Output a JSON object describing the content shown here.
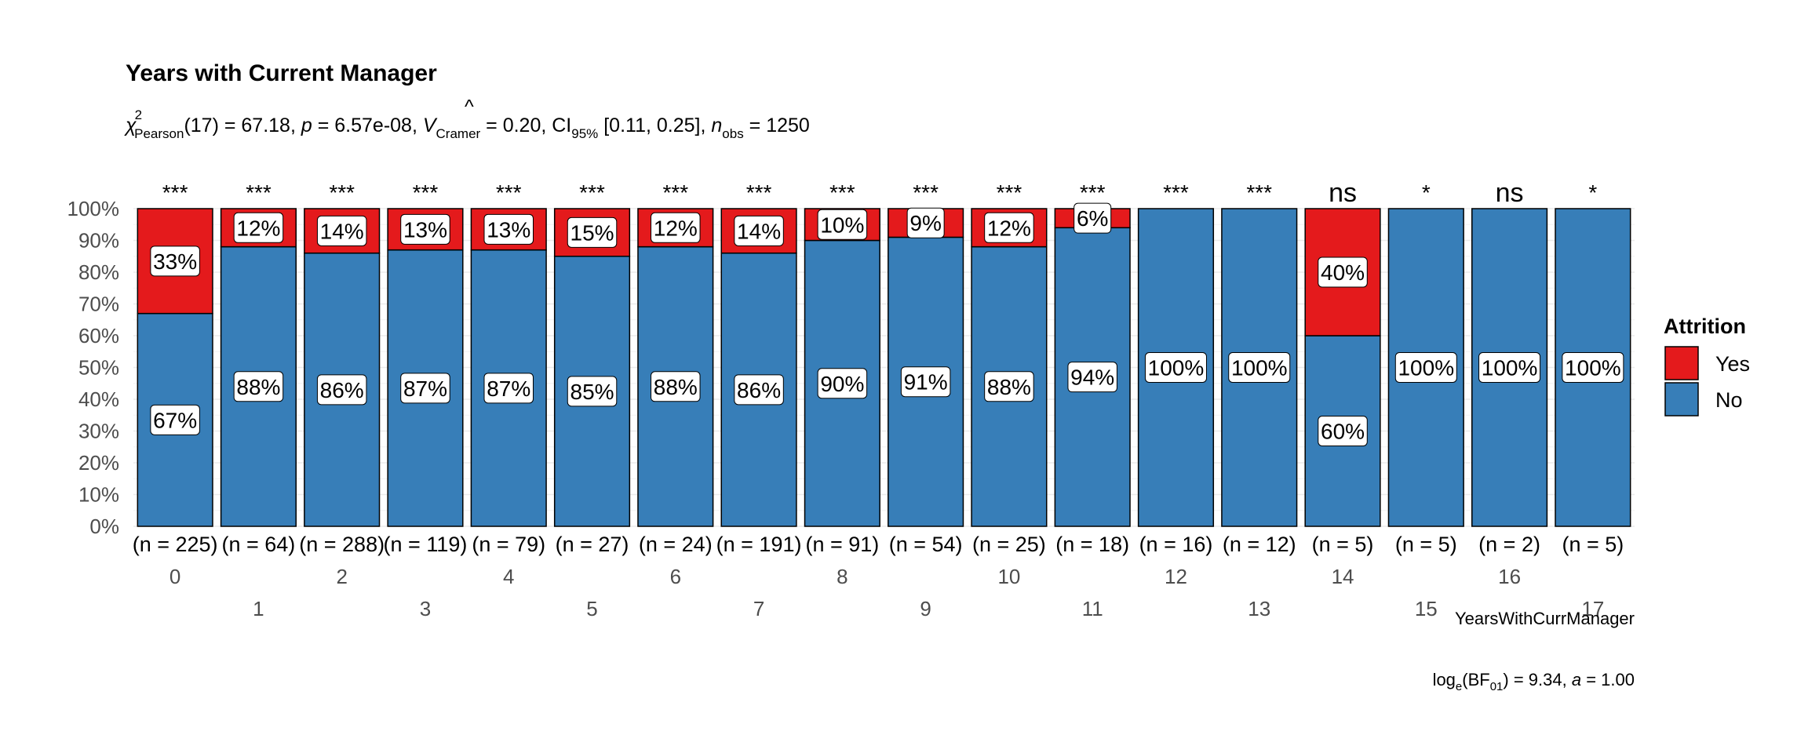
{
  "chart_data": {
    "type": "bar",
    "stacked": "percent",
    "title": "Years with Current Manager",
    "subtitle": {
      "stat_symbol": "χ",
      "stat_sup": "2",
      "stat_sub": "Pearson",
      "df_value": "(17) = 67.18, ",
      "p_symbol": "p",
      "p_value": " = 6.57e-08, ",
      "v_symbol": "V",
      "v_hat": "^",
      "v_sub": "Cramer",
      "v_value": " = 0.20, CI",
      "ci_sub": "95%",
      "ci_value": " [0.11, 0.25], ",
      "n_symbol": "n",
      "n_sub": "obs",
      "n_value": " = 1250"
    },
    "xlabel": "YearsWithCurrManager",
    "ylabel": "",
    "ylim": [
      0,
      100
    ],
    "y_ticks": [
      "0%",
      "10%",
      "20%",
      "30%",
      "40%",
      "50%",
      "60%",
      "70%",
      "80%",
      "90%",
      "100%"
    ],
    "categories": [
      "0",
      "1",
      "2",
      "3",
      "4",
      "5",
      "6",
      "7",
      "8",
      "9",
      "10",
      "11",
      "12",
      "13",
      "14",
      "15",
      "16",
      "17"
    ],
    "series": [
      {
        "name": "No",
        "color": "#377EB8",
        "values": [
          67,
          88,
          86,
          87,
          87,
          85,
          88,
          86,
          90,
          91,
          88,
          94,
          100,
          100,
          60,
          100,
          100,
          100
        ]
      },
      {
        "name": "Yes",
        "color": "#E41A1C",
        "values": [
          33,
          12,
          14,
          13,
          13,
          15,
          12,
          14,
          10,
          9,
          12,
          6,
          0,
          0,
          40,
          0,
          0,
          0
        ]
      }
    ],
    "counts": [
      "(n = 225)",
      "(n = 64)",
      "(n = 288)",
      "(n = 119)",
      "(n = 79)",
      "(n = 27)",
      "(n = 24)",
      "(n = 191)",
      "(n = 91)",
      "(n = 54)",
      "(n = 25)",
      "(n = 18)",
      "(n = 16)",
      "(n = 12)",
      "(n = 5)",
      "(n = 5)",
      "(n = 2)",
      "(n = 5)"
    ],
    "significance": [
      "***",
      "***",
      "***",
      "***",
      "***",
      "***",
      "***",
      "***",
      "***",
      "***",
      "***",
      "***",
      "***",
      "***",
      "ns",
      "*",
      "ns",
      "*"
    ],
    "legend": {
      "title": "Attrition",
      "position": "right",
      "entries": [
        {
          "label": "Yes",
          "color": "#E41A1C"
        },
        {
          "label": "No",
          "color": "#377EB8"
        }
      ]
    },
    "caption": {
      "prefix": "log",
      "log_sub": "e",
      "bf_open": "(BF",
      "bf_sub": "01",
      "bf_value": ") = 9.34, ",
      "a_symbol": "a",
      "a_value": " = 1.00"
    },
    "grid": "horizontal"
  }
}
